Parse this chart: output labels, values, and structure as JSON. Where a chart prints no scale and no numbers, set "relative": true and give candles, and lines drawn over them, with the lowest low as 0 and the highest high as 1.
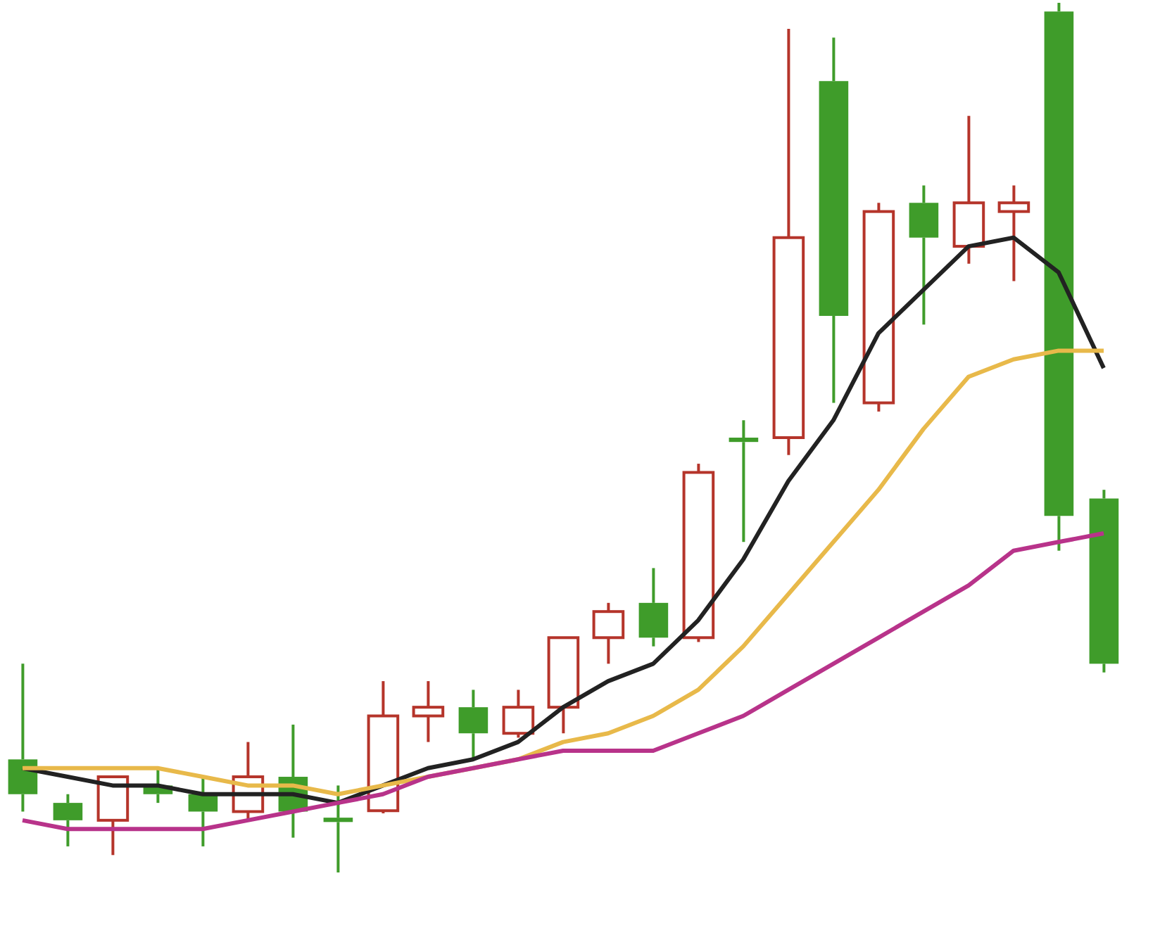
{
  "chart_data": {
    "type": "candlestick",
    "relative": true,
    "categories": [
      null,
      null,
      null,
      null,
      null,
      null,
      null,
      null,
      null,
      null,
      null,
      null,
      null,
      null,
      null,
      null,
      null,
      null,
      null,
      null,
      null,
      null,
      null,
      null,
      null
    ],
    "ohlc": [
      [
        0.13,
        0.24,
        0.07,
        0.09
      ],
      [
        0.08,
        0.09,
        0.03,
        0.06
      ],
      [
        0.06,
        0.11,
        0.02,
        0.11
      ],
      [
        0.1,
        0.12,
        0.08,
        0.09
      ],
      [
        0.09,
        0.11,
        0.03,
        0.07
      ],
      [
        0.07,
        0.15,
        0.06,
        0.11
      ],
      [
        0.11,
        0.17,
        0.04,
        0.07
      ],
      [
        0.063,
        0.1,
        0,
        0.058
      ],
      [
        0.071,
        0.22,
        0.068,
        0.18
      ],
      [
        0.18,
        0.22,
        0.15,
        0.19
      ],
      [
        0.19,
        0.21,
        0.13,
        0.16
      ],
      [
        0.16,
        0.21,
        0.155,
        0.19
      ],
      [
        0.19,
        0.27,
        0.16,
        0.27
      ],
      [
        0.27,
        0.31,
        0.24,
        0.3
      ],
      [
        0.31,
        0.35,
        0.26,
        0.27
      ],
      [
        0.27,
        0.47,
        0.265,
        0.46
      ],
      [
        0.5,
        0.52,
        0.38,
        0.495
      ],
      [
        0.5,
        0.97,
        0.48,
        0.73
      ],
      [
        0.91,
        0.96,
        0.54,
        0.64
      ],
      [
        0.54,
        0.77,
        0.53,
        0.76
      ],
      [
        0.77,
        0.79,
        0.63,
        0.73
      ],
      [
        0.72,
        0.87,
        0.7,
        0.77
      ],
      [
        0.76,
        0.79,
        0.68,
        0.77
      ],
      [
        0.99,
        1,
        0.37,
        0.41
      ],
      [
        0.43,
        0.44,
        0.23,
        0.24
      ]
    ],
    "colors": [
      "#3f9c2a",
      "#3f9c2a",
      "#b5342a",
      "#3f9c2a",
      "#3f9c2a",
      "#b5342a",
      "#3f9c2a",
      "#3f9c2a",
      "#b5342a",
      "#b5342a",
      "#3f9c2a",
      "#b5342a",
      "#b5342a",
      "#b5342a",
      "#3f9c2a",
      "#b5342a",
      "#3f9c2a",
      "#b5342a",
      "#3f9c2a",
      "#b5342a",
      "#3f9c2a",
      "#b5342a",
      "#b5342a",
      "#3f9c2a",
      "#3f9c2a"
    ],
    "marker": "none",
    "line_style": "solid",
    "series": [
      {
        "type": "line",
        "color": "#222222",
        "values": [
          0.12,
          0.11,
          0.1,
          0.1,
          0.09,
          0.09,
          0.09,
          0.08,
          0.1,
          0.12,
          0.13,
          0.15,
          0.19,
          0.22,
          0.24,
          0.29,
          0.36,
          0.45,
          0.52,
          0.62,
          0.67,
          0.72,
          0.73,
          0.69,
          0.58
        ]
      },
      {
        "type": "line",
        "color": "#e8b94a",
        "values": [
          0.12,
          0.12,
          0.12,
          0.12,
          0.11,
          0.1,
          0.1,
          0.09,
          0.1,
          0.11,
          0.12,
          0.13,
          0.15,
          0.16,
          0.18,
          0.21,
          0.26,
          0.32,
          0.38,
          0.44,
          0.51,
          0.57,
          0.59,
          0.6,
          0.6
        ]
      },
      {
        "type": "line",
        "color": "#b8338a",
        "values": [
          0.06,
          0.05,
          0.05,
          0.05,
          0.05,
          0.06,
          0.07,
          0.08,
          0.09,
          0.11,
          0.12,
          0.13,
          0.14,
          0.14,
          0.14,
          0.16,
          0.18,
          0.21,
          0.24,
          0.27,
          0.3,
          0.33,
          0.37,
          0.38,
          0.39
        ]
      }
    ]
  }
}
